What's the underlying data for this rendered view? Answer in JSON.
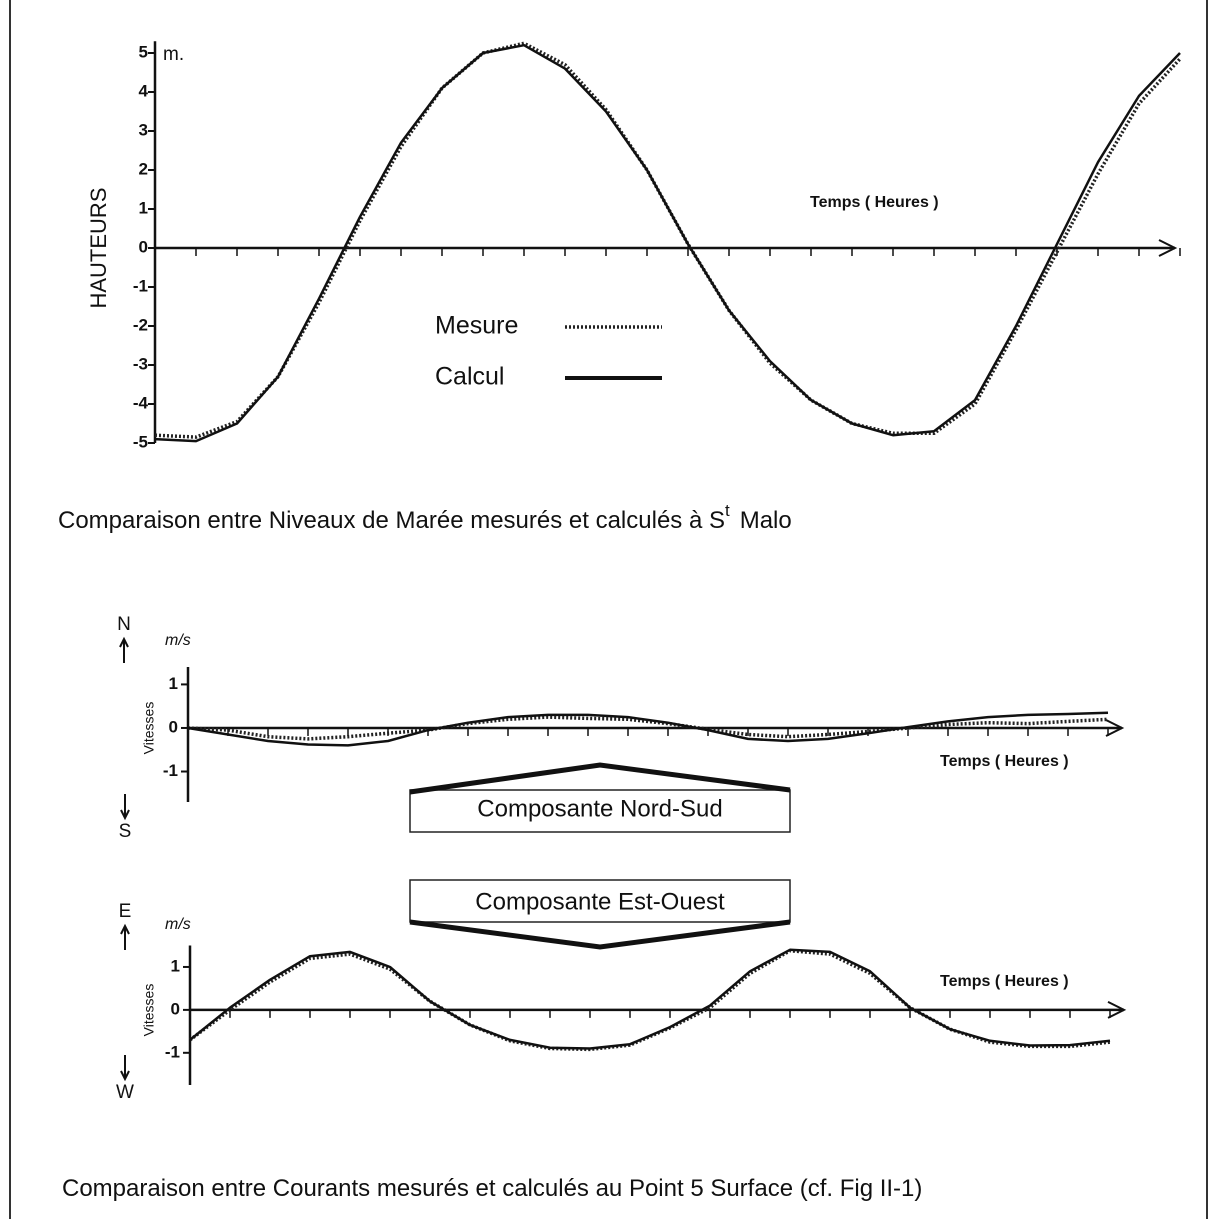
{
  "chart_data": [
    {
      "type": "line",
      "ylabel": "HAUTEURS",
      "unit": "m.",
      "xlabel": "Temps ( Heures )",
      "ylim": [
        -5,
        5.3
      ],
      "yticks": [
        -5,
        -4,
        -3,
        -2,
        -1,
        0,
        1,
        2,
        3,
        4,
        5
      ],
      "legend": true,
      "categories": [
        null,
        null,
        null,
        null,
        null,
        null,
        null,
        null,
        null,
        null,
        null,
        null,
        null,
        null,
        null,
        null,
        null,
        null,
        null,
        null,
        null,
        null,
        null,
        null,
        null,
        null
      ],
      "series": [
        {
          "name": "Mesure",
          "color": "#222",
          "style": "dotted",
          "values": [
            -4.8,
            -4.85,
            -4.45,
            -3.3,
            -1.4,
            0.7,
            2.6,
            4.1,
            5.0,
            5.25,
            4.7,
            3.55,
            2.0,
            0.1,
            -1.6,
            -2.95,
            -3.9,
            -4.5,
            -4.75,
            -4.75,
            -4.0,
            -2.1,
            -0.1,
            1.9,
            3.7,
            4.85
          ]
        },
        {
          "name": "Calcul",
          "color": "#111",
          "style": "solid",
          "values": [
            -4.9,
            -4.95,
            -4.5,
            -3.3,
            -1.3,
            0.8,
            2.7,
            4.1,
            5.0,
            5.2,
            4.6,
            3.5,
            2.0,
            0.1,
            -1.6,
            -2.9,
            -3.9,
            -4.5,
            -4.8,
            -4.7,
            -3.9,
            -2.0,
            0.1,
            2.2,
            3.9,
            5.0
          ]
        }
      ],
      "caption": {
        "text": "Comparaison entre Niveaux de Marée mesurés et calculés à S",
        "sup": "t",
        "after": "Malo"
      }
    },
    {
      "type": "line",
      "ylabel": "Vitesses",
      "unit": "m/s",
      "xlabel": "Temps ( Heures )",
      "direction_up": "N",
      "direction_down": "S",
      "component": "Composante Nord-Sud",
      "ylim": [
        -1.7,
        1.4
      ],
      "yticks": [
        -1,
        0,
        1
      ],
      "legend": false,
      "categories": [
        null,
        null,
        null,
        null,
        null,
        null,
        null,
        null,
        null,
        null,
        null,
        null,
        null,
        null,
        null,
        null,
        null,
        null,
        null,
        null,
        null,
        null,
        null,
        null
      ],
      "series": [
        {
          "color": "#222",
          "style": "dotted",
          "values": [
            0,
            -0.05,
            -0.2,
            -0.25,
            -0.2,
            -0.12,
            -0.05,
            0.1,
            0.2,
            0.25,
            0.22,
            0.2,
            0.1,
            -0.03,
            -0.15,
            -0.2,
            -0.15,
            -0.08,
            0.0,
            0.08,
            0.12,
            0.1,
            0.15,
            0.2
          ]
        },
        {
          "color": "#111",
          "style": "solid",
          "values": [
            0,
            -0.15,
            -0.3,
            -0.38,
            -0.4,
            -0.3,
            -0.05,
            0.12,
            0.25,
            0.3,
            0.3,
            0.25,
            0.12,
            -0.05,
            -0.25,
            -0.3,
            -0.25,
            -0.12,
            0.02,
            0.15,
            0.25,
            0.3,
            0.32,
            0.35
          ]
        }
      ]
    },
    {
      "type": "line",
      "ylabel": "Vitesses",
      "unit": "m/s",
      "xlabel": "Temps ( Heures )",
      "direction_up": "E",
      "direction_down": "W",
      "component": "Composante Est-Ouest",
      "ylim": [
        -1.75,
        1.5
      ],
      "yticks": [
        -1,
        0,
        1
      ],
      "legend": false,
      "categories": [
        null,
        null,
        null,
        null,
        null,
        null,
        null,
        null,
        null,
        null,
        null,
        null,
        null,
        null,
        null,
        null,
        null,
        null,
        null,
        null,
        null,
        null,
        null,
        null
      ],
      "series": [
        {
          "color": "#222",
          "style": "dotted",
          "values": [
            -0.7,
            0.0,
            0.65,
            1.2,
            1.3,
            0.95,
            0.2,
            -0.35,
            -0.72,
            -0.9,
            -0.92,
            -0.82,
            -0.42,
            0.05,
            0.85,
            1.38,
            1.3,
            0.85,
            0.05,
            -0.45,
            -0.75,
            -0.85,
            -0.85,
            -0.75
          ]
        },
        {
          "color": "#111",
          "style": "solid",
          "values": [
            -0.7,
            0.05,
            0.7,
            1.25,
            1.35,
            1.0,
            0.2,
            -0.35,
            -0.7,
            -0.88,
            -0.9,
            -0.8,
            -0.4,
            0.1,
            0.9,
            1.4,
            1.35,
            0.9,
            0.05,
            -0.45,
            -0.72,
            -0.83,
            -0.82,
            -0.72
          ]
        }
      ],
      "caption": {
        "text": "Comparaison entre Courants mesurés et calculés au Point 5 Surface (cf. Fig II-1)"
      }
    }
  ]
}
